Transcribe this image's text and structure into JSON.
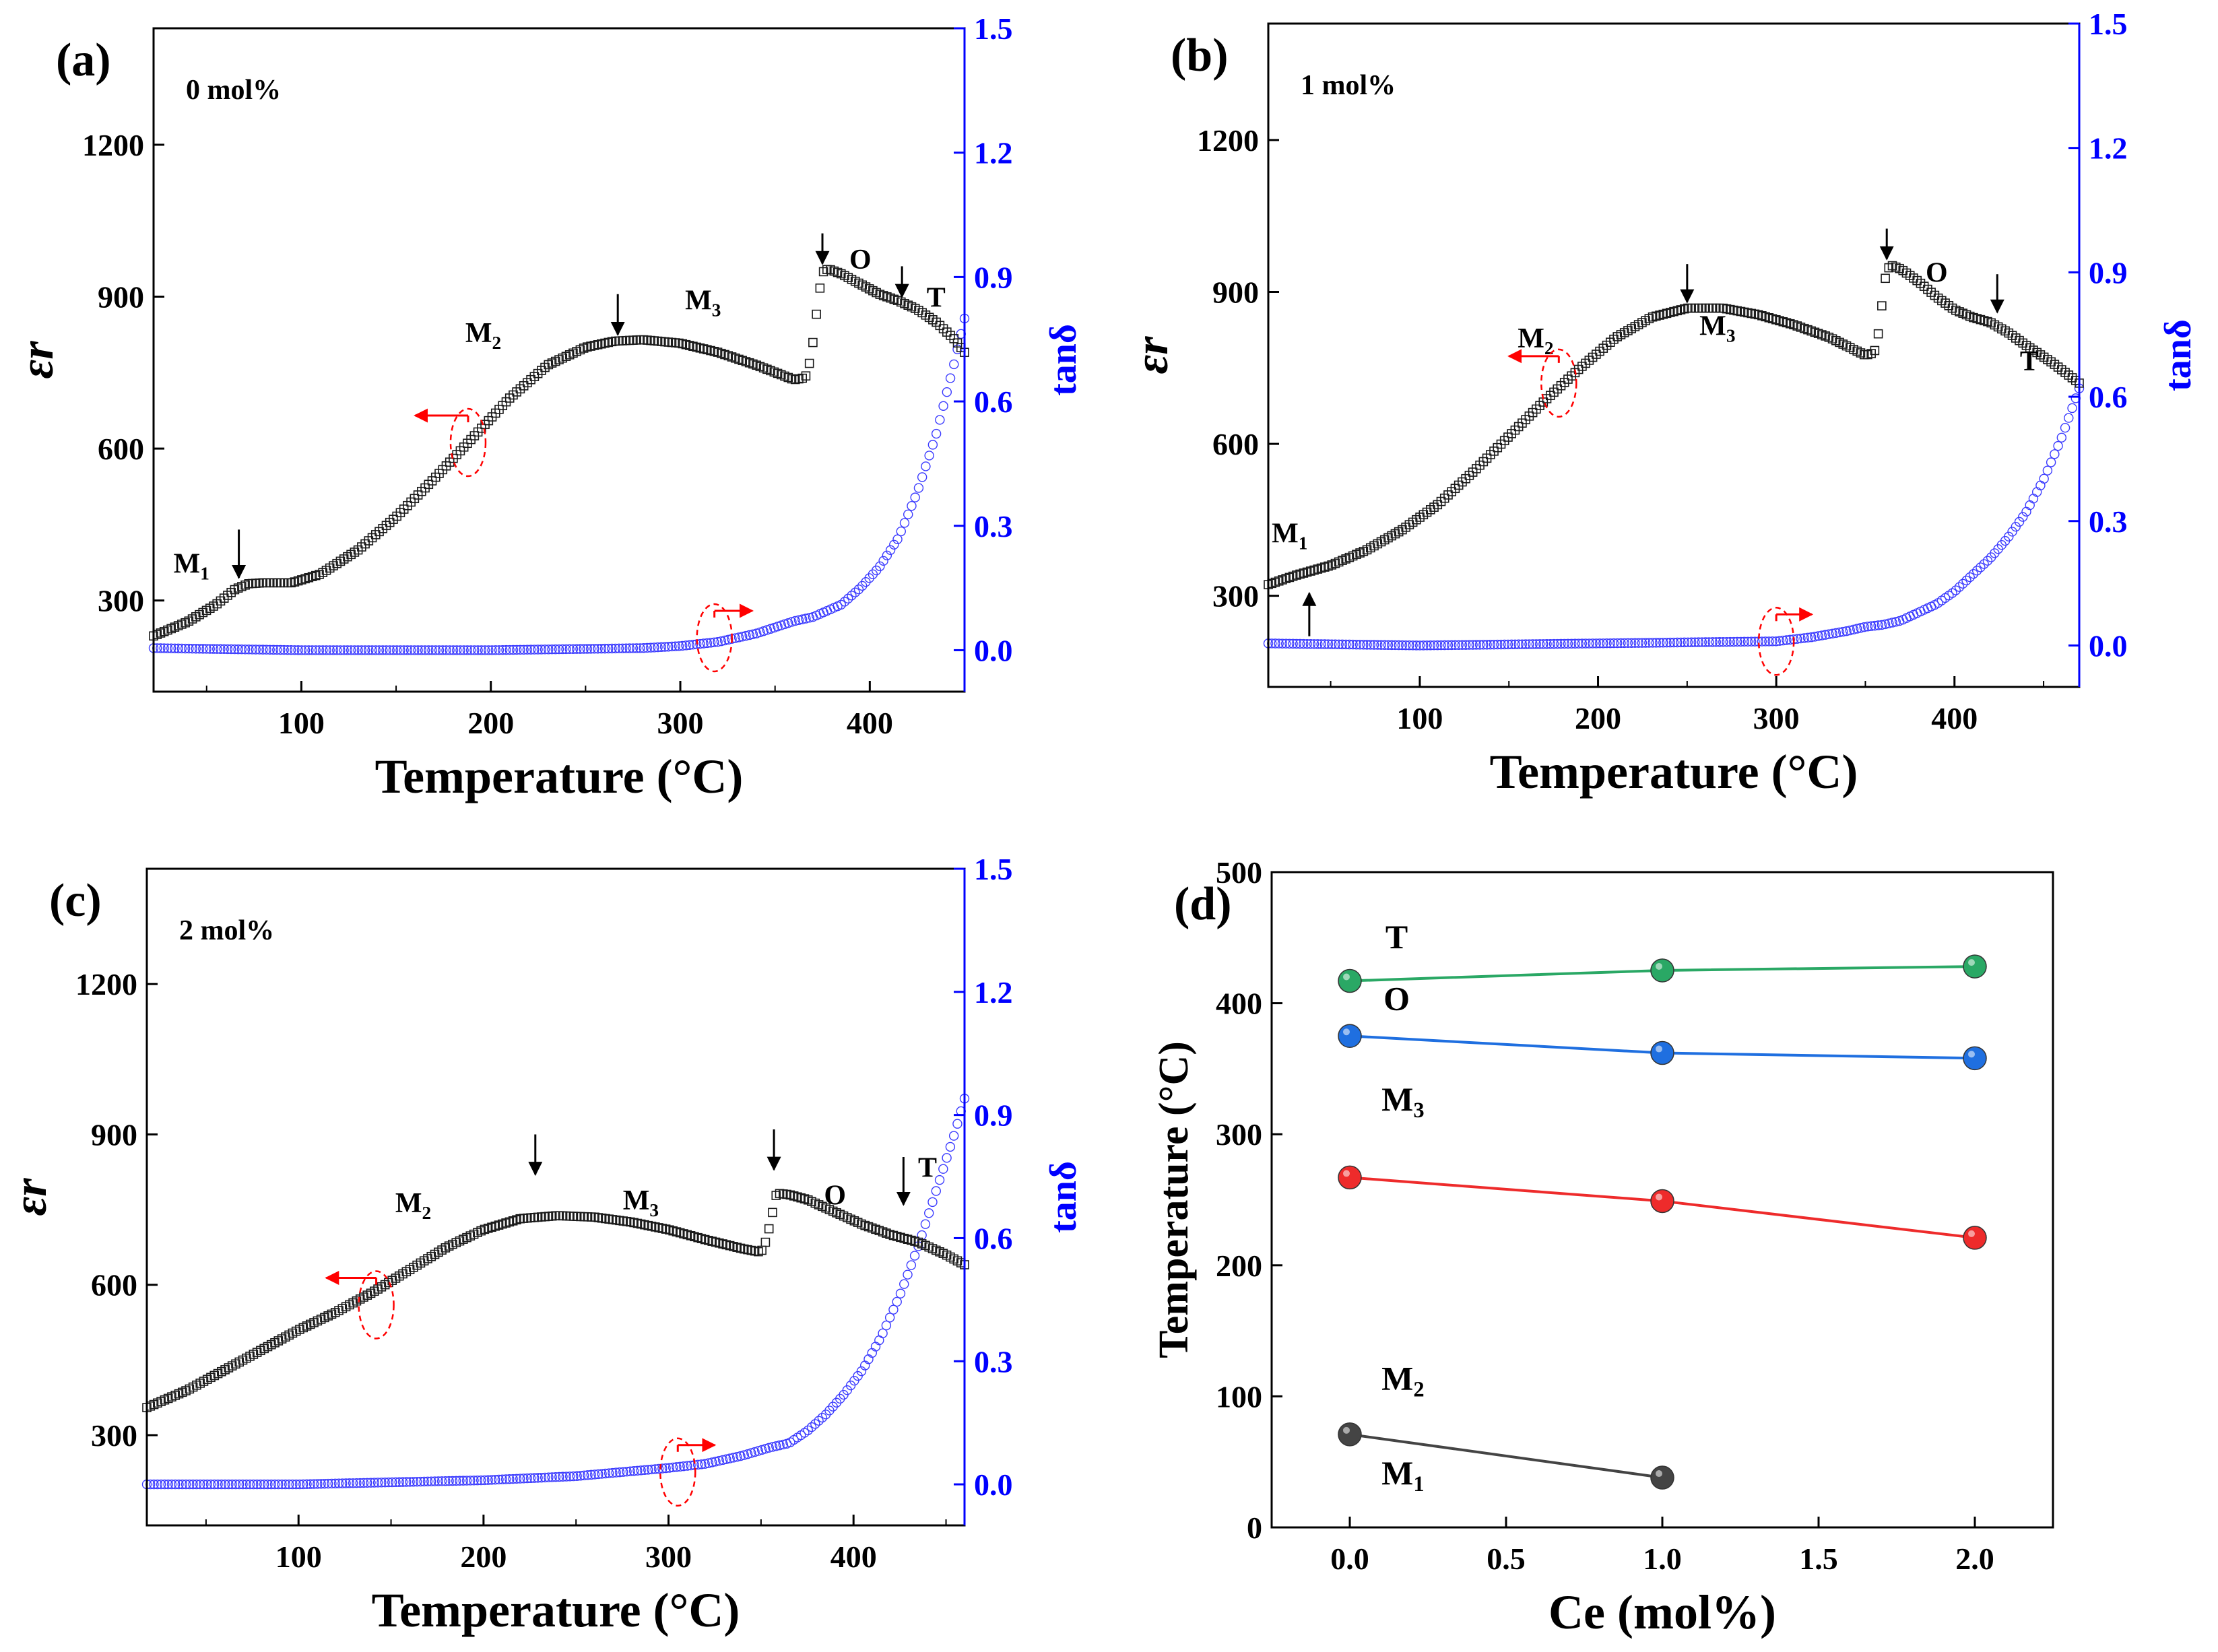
{
  "figure": {
    "panels": [
      "(a)",
      "(b)",
      "(c)",
      "(d)"
    ]
  },
  "colors": {
    "eps": "#1a1a1a",
    "tan": "#3b3bff",
    "right_axis": "#0000ff",
    "guide": "#ff0000",
    "M1": "#444444",
    "M3": "#ee2b2b",
    "O": "#1f6fe0",
    "T": "#2aa865"
  },
  "chart_data": [
    {
      "id": "a",
      "type": "scatter",
      "label": "(a)",
      "annotation": "0 mol%",
      "xlabel": "Temperature (°C)",
      "ylabel": "εr",
      "y2label": "tanδ",
      "xlim": [
        22,
        450
      ],
      "ylim": [
        120,
        1430
      ],
      "y2lim": [
        -0.1,
        1.5
      ],
      "xticks": [
        100,
        200,
        300,
        400
      ],
      "yticks": [
        300,
        600,
        900,
        1200
      ],
      "y2ticks": [
        0.0,
        0.3,
        0.6,
        0.9,
        1.2,
        1.5
      ],
      "xtick_labels": [
        "100",
        "200",
        "300",
        "400"
      ],
      "ytick_labels": [
        "300",
        "600",
        "900",
        "1200"
      ],
      "y2tick_labels": [
        "0.0",
        "0.3",
        "0.6",
        "0.9",
        "1.2",
        "1.5"
      ],
      "series": [
        {
          "name": "εr",
          "axis": "left",
          "marker": "square",
          "x": [
            22,
            40,
            55,
            65,
            72,
            80,
            95,
            110,
            130,
            150,
            170,
            190,
            210,
            230,
            250,
            265,
            280,
            300,
            320,
            340,
            360,
            366,
            369,
            371,
            373,
            375,
            378,
            385,
            395,
            405,
            415,
            425,
            435,
            445,
            450
          ],
          "y": [
            230,
            258,
            292,
            322,
            333,
            335,
            335,
            352,
            400,
            465,
            540,
            620,
            700,
            765,
            800,
            812,
            815,
            808,
            790,
            765,
            736,
            740,
            780,
            840,
            900,
            948,
            955,
            945,
            925,
            905,
            892,
            875,
            850,
            815,
            790
          ]
        },
        {
          "name": "tanδ",
          "axis": "right",
          "marker": "circle",
          "x": [
            22,
            100,
            200,
            280,
            300,
            320,
            340,
            360,
            370,
            375,
            385,
            395,
            405,
            415,
            425,
            435,
            445,
            450
          ],
          "y": [
            0.005,
            0.0,
            0.0,
            0.005,
            0.01,
            0.02,
            0.04,
            0.07,
            0.08,
            0.09,
            0.11,
            0.15,
            0.2,
            0.27,
            0.38,
            0.52,
            0.7,
            0.8
          ]
        }
      ],
      "annotations": [
        {
          "text": "M1",
          "base": "M",
          "sub": "1",
          "x": 42,
          "y": 355
        },
        {
          "text": "M2",
          "base": "M",
          "sub": "2",
          "x": 196,
          "y": 810
        },
        {
          "text": "M3",
          "base": "M",
          "sub": "3",
          "x": 312,
          "y": 875
        },
        {
          "text": "O",
          "x": 395,
          "y": 955
        },
        {
          "text": "T",
          "x": 435,
          "y": 880
        }
      ],
      "arrows": [
        {
          "x": 67,
          "from": 440,
          "to": 345
        },
        {
          "x": 267,
          "from": 905,
          "to": 825
        },
        {
          "x": 375,
          "from": 1025,
          "to": 965
        },
        {
          "x": 417,
          "from": 960,
          "to": 900
        }
      ],
      "guides": [
        {
          "x": 188,
          "y": 612,
          "arrow_dir": "left",
          "arrow_axis": "left",
          "arrow_x": 160
        },
        {
          "x": 318,
          "y": 0.03,
          "arrow_dir": "right",
          "arrow_axis": "right",
          "arrow_x": 338
        }
      ]
    },
    {
      "id": "b",
      "type": "scatter",
      "label": "(b)",
      "annotation": "1 mol%",
      "xlabel": "Temperature (°C)",
      "ylabel": "εr",
      "y2label": "tanδ",
      "xlim": [
        15,
        470
      ],
      "ylim": [
        120,
        1430
      ],
      "y2lim": [
        -0.1,
        1.5
      ],
      "xticks": [
        100,
        200,
        300,
        400
      ],
      "yticks": [
        300,
        600,
        900,
        1200
      ],
      "y2ticks": [
        0.0,
        0.3,
        0.6,
        0.9,
        1.2,
        1.5
      ],
      "xtick_labels": [
        "100",
        "200",
        "300",
        "400"
      ],
      "ytick_labels": [
        "300",
        "600",
        "900",
        "1200"
      ],
      "y2tick_labels": [
        "0.0",
        "0.3",
        "0.6",
        "0.9",
        "1.2",
        "1.5"
      ],
      "series": [
        {
          "name": "εr",
          "axis": "left",
          "marker": "square",
          "x": [
            15,
            30,
            50,
            70,
            90,
            110,
            130,
            150,
            170,
            190,
            210,
            230,
            250,
            270,
            290,
            310,
            330,
            350,
            355,
            358,
            360,
            362,
            365,
            370,
            380,
            390,
            400,
            410,
            420,
            430,
            440,
            455,
            470
          ],
          "y": [
            322,
            340,
            360,
            390,
            430,
            480,
            545,
            615,
            685,
            750,
            810,
            850,
            868,
            868,
            855,
            835,
            810,
            775,
            780,
            830,
            900,
            945,
            952,
            945,
            920,
            890,
            865,
            850,
            840,
            820,
            795,
            760,
            720
          ],
          "yscale": "left"
        },
        {
          "name": "tanδ",
          "axis": "right",
          "marker": "circle",
          "x": [
            15,
            100,
            200,
            300,
            320,
            340,
            350,
            360,
            370,
            380,
            390,
            400,
            410,
            420,
            430,
            440,
            450,
            460,
            470
          ],
          "y": [
            0.005,
            0.0,
            0.005,
            0.01,
            0.02,
            0.035,
            0.045,
            0.05,
            0.06,
            0.08,
            0.1,
            0.13,
            0.17,
            0.21,
            0.26,
            0.32,
            0.4,
            0.5,
            0.62
          ]
        }
      ],
      "annotations": [
        {
          "text": "M1",
          "base": "M",
          "sub": "1",
          "x": 27,
          "y": 405
        },
        {
          "text": "M2",
          "base": "M",
          "sub": "2",
          "x": 165,
          "y": 790
        },
        {
          "text": "M3",
          "base": "M",
          "sub": "3",
          "x": 267,
          "y": 815
        },
        {
          "text": "O",
          "x": 390,
          "y": 920
        },
        {
          "text": "T",
          "x": 442,
          "y": 745
        }
      ],
      "arrows": [
        {
          "x": 38,
          "from": 220,
          "to": 305
        },
        {
          "x": 250,
          "from": 955,
          "to": 880
        },
        {
          "x": 362,
          "from": 1025,
          "to": 965
        },
        {
          "x": 424,
          "from": 935,
          "to": 860
        }
      ],
      "guides": [
        {
          "x": 178,
          "y": 720,
          "arrow_dir": "left",
          "arrow_axis": "left",
          "arrow_x": 150
        },
        {
          "x": 300,
          "y": 0.01,
          "arrow_dir": "right",
          "arrow_axis": "right",
          "arrow_x": 320
        }
      ]
    },
    {
      "id": "c",
      "type": "scatter",
      "label": "(c)",
      "annotation": "2 mol%",
      "xlabel": "Temperature (°C)",
      "ylabel": "εr",
      "y2label": "tanδ",
      "xlim": [
        18,
        460
      ],
      "ylim": [
        120,
        1430
      ],
      "y2lim": [
        -0.1,
        1.5
      ],
      "xticks": [
        100,
        200,
        300,
        400
      ],
      "yticks": [
        300,
        600,
        900,
        1200
      ],
      "y2ticks": [
        0.0,
        0.3,
        0.6,
        0.9,
        1.2,
        1.5
      ],
      "xtick_labels": [
        "100",
        "200",
        "300",
        "400"
      ],
      "ytick_labels": [
        "300",
        "600",
        "900",
        "1200"
      ],
      "y2tick_labels": [
        "0.0",
        "0.3",
        "0.6",
        "0.9",
        "1.2",
        "1.5"
      ],
      "series": [
        {
          "name": "εr",
          "axis": "left",
          "marker": "square",
          "x": [
            18,
            40,
            60,
            80,
            100,
            120,
            140,
            160,
            180,
            200,
            220,
            240,
            260,
            280,
            300,
            320,
            340,
            350,
            353,
            356,
            358,
            360,
            365,
            375,
            390,
            405,
            420,
            435,
            450,
            460
          ],
          "y": [
            355,
            390,
            430,
            470,
            510,
            545,
            585,
            630,
            675,
            710,
            732,
            738,
            735,
            725,
            710,
            690,
            672,
            665,
            690,
            740,
            778,
            782,
            780,
            770,
            745,
            720,
            700,
            685,
            660,
            640
          ]
        },
        {
          "name": "tanδ",
          "axis": "right",
          "marker": "circle",
          "x": [
            18,
            100,
            200,
            250,
            300,
            320,
            340,
            355,
            365,
            375,
            385,
            395,
            405,
            415,
            425,
            435,
            445,
            455,
            460
          ],
          "y": [
            0.0,
            0.0,
            0.01,
            0.02,
            0.04,
            0.05,
            0.07,
            0.09,
            0.1,
            0.13,
            0.17,
            0.22,
            0.28,
            0.36,
            0.46,
            0.58,
            0.72,
            0.86,
            0.94
          ]
        }
      ],
      "annotations": [
        {
          "text": "M2",
          "base": "M",
          "sub": "2",
          "x": 162,
          "y": 745
        },
        {
          "text": "M3",
          "base": "M",
          "sub": "3",
          "x": 285,
          "y": 750
        },
        {
          "text": "O",
          "x": 390,
          "y": 760
        },
        {
          "text": "T",
          "x": 440,
          "y": 815
        }
      ],
      "arrows": [
        {
          "x": 228,
          "from": 900,
          "to": 820
        },
        {
          "x": 357,
          "from": 910,
          "to": 830
        },
        {
          "x": 427,
          "from": 855,
          "to": 760
        }
      ],
      "guides": [
        {
          "x": 142,
          "y": 560,
          "arrow_dir": "left",
          "arrow_axis": "left",
          "arrow_x": 115
        },
        {
          "x": 305,
          "y": 0.03,
          "arrow_dir": "right",
          "arrow_axis": "right",
          "arrow_x": 325
        }
      ]
    },
    {
      "id": "d",
      "type": "line",
      "label": "(d)",
      "xlabel": "Ce (mol%)",
      "ylabel": "Temperature (°C)",
      "xlim": [
        -0.25,
        2.25
      ],
      "ylim": [
        0,
        500
      ],
      "xticks": [
        0.0,
        0.5,
        1.0,
        1.5,
        2.0
      ],
      "yticks": [
        0,
        100,
        200,
        300,
        400,
        500
      ],
      "xtick_labels": [
        "0.0",
        "0.5",
        "1.0",
        "1.5",
        "2.0"
      ],
      "ytick_labels": [
        "0",
        "100",
        "200",
        "300",
        "400",
        "500"
      ],
      "series": [
        {
          "name": "T",
          "color_key": "T",
          "x": [
            0,
            1,
            2
          ],
          "y": [
            417,
            425,
            428
          ]
        },
        {
          "name": "O",
          "color_key": "O",
          "x": [
            0,
            1,
            2
          ],
          "y": [
            375,
            362,
            358
          ]
        },
        {
          "name": "M3",
          "color_key": "M3",
          "x": [
            0,
            1,
            2
          ],
          "y": [
            267,
            249,
            221
          ]
        },
        {
          "name": "M1",
          "color_key": "M1",
          "x": [
            0,
            1
          ],
          "y": [
            71,
            38
          ]
        }
      ],
      "annotations": [
        {
          "text": "T",
          "x": 0.15,
          "y": 442
        },
        {
          "text": "O",
          "x": 0.15,
          "y": 395
        },
        {
          "text": "M3",
          "base": "M",
          "sub": "3",
          "x": 0.17,
          "y": 318
        },
        {
          "text": "M2",
          "base": "M",
          "sub": "2",
          "x": 0.17,
          "y": 105
        },
        {
          "text": "M1",
          "base": "M",
          "sub": "1",
          "x": 0.17,
          "y": 33
        }
      ]
    }
  ]
}
